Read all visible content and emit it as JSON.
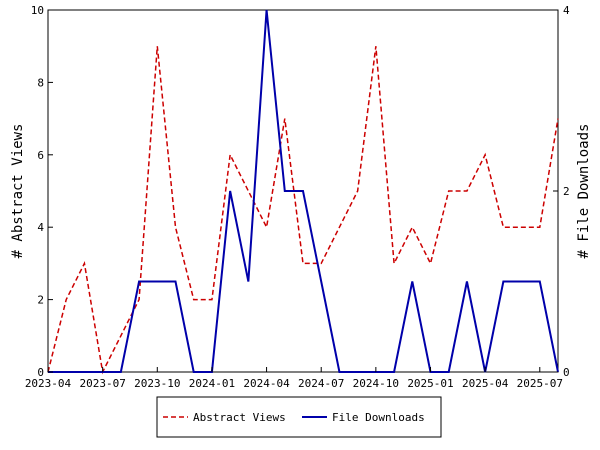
{
  "chart_data": {
    "type": "line",
    "x": [
      "2023-04",
      "2023-05",
      "2023-06",
      "2023-07",
      "2023-08",
      "2023-09",
      "2023-10",
      "2023-11",
      "2023-12",
      "2024-01",
      "2024-02",
      "2024-03",
      "2024-04",
      "2024-05",
      "2024-06",
      "2024-07",
      "2024-08",
      "2024-09",
      "2024-10",
      "2024-11",
      "2024-12",
      "2025-01",
      "2025-02",
      "2025-03",
      "2025-04",
      "2025-05",
      "2025-06",
      "2025-07",
      "2025-08"
    ],
    "x_tick_labels": [
      "2023-04",
      "2023-07",
      "2023-10",
      "2024-01",
      "2024-04",
      "2024-07",
      "2024-10",
      "2025-01",
      "2025-04",
      "2025-07"
    ],
    "series": [
      {
        "name": "Abstract Views",
        "axis": "left",
        "color": "#cc0000",
        "dash": "dashed",
        "values": [
          0,
          2,
          3,
          0,
          1,
          2,
          9,
          4,
          2,
          2,
          6,
          5,
          4,
          7,
          3,
          3,
          4,
          5,
          9,
          3,
          4,
          3,
          5,
          5,
          6,
          4,
          4,
          4,
          7
        ]
      },
      {
        "name": "File Downloads",
        "axis": "right",
        "color": "#0000aa",
        "dash": "solid",
        "values": [
          0,
          0,
          0,
          0,
          0,
          1,
          1,
          1,
          0,
          0,
          2,
          1,
          4,
          2,
          2,
          1,
          0,
          0,
          0,
          0,
          1,
          0,
          0,
          1,
          0,
          1,
          1,
          1,
          0
        ]
      }
    ],
    "ylabel": "# Abstract Views",
    "ylim": [
      0,
      10
    ],
    "yticks": [
      0,
      2,
      4,
      6,
      8,
      10
    ],
    "y2label": "# File Downloads",
    "y2lim": [
      0,
      4
    ],
    "y2ticks": [
      0,
      2,
      4
    ],
    "grid": false,
    "legend_position": "bottom-center"
  }
}
